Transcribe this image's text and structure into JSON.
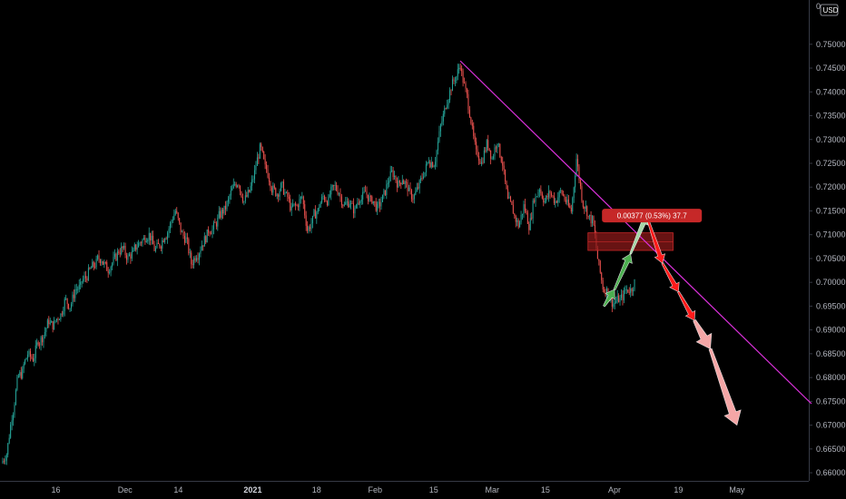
{
  "axis": {
    "currency": "USD",
    "top_label": "0"
  },
  "measure": {
    "label": "0.00377 (0.53%) 37.7"
  },
  "colors": {
    "up": "#26a69a",
    "down": "#ef5350",
    "trendline": "#d930d9",
    "zone": "#8b1a1a",
    "arrow_green": "#4caf50",
    "arrow_light_green": "#a5d6a7",
    "arrow_red": "#ff1a1a",
    "arrow_pink": "#f4a6a6"
  },
  "chart_data": {
    "type": "candlestick",
    "currency": "USD",
    "y_ticks": [
      0.66,
      0.665,
      0.67,
      0.675,
      0.68,
      0.685,
      0.69,
      0.695,
      0.7,
      0.705,
      0.71,
      0.715,
      0.72,
      0.725,
      0.73,
      0.735,
      0.74,
      0.745,
      0.75
    ],
    "y_tick_labels": [
      "0.66000",
      "0.66500",
      "0.67000",
      "0.67500",
      "0.68000",
      "0.68500",
      "0.69000",
      "0.69500",
      "0.70000",
      "0.70500",
      "0.71000",
      "0.71500",
      "0.72000",
      "0.72500",
      "0.73000",
      "0.73500",
      "0.74000",
      "0.74500",
      "0.75000"
    ],
    "ylim": [
      0.6583,
      0.7593
    ],
    "x_ticks": [
      {
        "label": "16",
        "bold": false,
        "index": 10
      },
      {
        "label": "Dec",
        "bold": false,
        "index": 23
      },
      {
        "label": "14",
        "bold": false,
        "index": 33
      },
      {
        "label": "2021",
        "bold": true,
        "index": 47
      },
      {
        "label": "18",
        "bold": false,
        "index": 59
      },
      {
        "label": "Feb",
        "bold": false,
        "index": 70
      },
      {
        "label": "15",
        "bold": false,
        "index": 81
      },
      {
        "label": "Mar",
        "bold": false,
        "index": 92
      },
      {
        "label": "15",
        "bold": false,
        "index": 102
      },
      {
        "label": "Apr",
        "bold": false,
        "index": 115
      },
      {
        "label": "19",
        "bold": false,
        "index": 127
      },
      {
        "label": "May",
        "bold": false,
        "index": 138
      }
    ],
    "x_count": 152,
    "close": [
      0.664,
      0.672,
      0.679,
      0.681,
      0.685,
      0.684,
      0.688,
      0.689,
      0.692,
      0.691,
      0.693,
      0.696,
      0.695,
      0.6985,
      0.699,
      0.701,
      0.703,
      0.704,
      0.705,
      0.703,
      0.704,
      0.706,
      0.707,
      0.705,
      0.706,
      0.708,
      0.709,
      0.71,
      0.707,
      0.708,
      0.71,
      0.712,
      0.715,
      0.711,
      0.709,
      0.704,
      0.706,
      0.708,
      0.71,
      0.711,
      0.713,
      0.715,
      0.717,
      0.72,
      0.721,
      0.717,
      0.719,
      0.723,
      0.728,
      0.724,
      0.721,
      0.719,
      0.72,
      0.718,
      0.715,
      0.716,
      0.718,
      0.711,
      0.713,
      0.715,
      0.718,
      0.717,
      0.72,
      0.719,
      0.716,
      0.717,
      0.715,
      0.718,
      0.719,
      0.717,
      0.716,
      0.717,
      0.72,
      0.723,
      0.721,
      0.722,
      0.72,
      0.718,
      0.72,
      0.723,
      0.726,
      0.725,
      0.731,
      0.736,
      0.74,
      0.743,
      0.746,
      0.74,
      0.734,
      0.727,
      0.725,
      0.729,
      0.726,
      0.73,
      0.725,
      0.717,
      0.715,
      0.712,
      0.716,
      0.712,
      0.718,
      0.72,
      0.717,
      0.719,
      0.717,
      0.719,
      0.717,
      0.715,
      0.726,
      0.718,
      0.715,
      0.713,
      0.705,
      0.699,
      0.698,
      0.6955,
      0.6965,
      0.6975,
      0.6985,
      0.7
    ],
    "projection_path": [
      {
        "x": 115,
        "y": 0.6985,
        "kind": "up"
      },
      {
        "x": 118,
        "y": 0.706,
        "kind": "up"
      },
      {
        "x": 121,
        "y": 0.714,
        "kind": "up_light"
      },
      {
        "x": 124,
        "y": 0.704,
        "kind": "down"
      },
      {
        "x": 127,
        "y": 0.698,
        "kind": "down"
      },
      {
        "x": 130,
        "y": 0.692,
        "kind": "down"
      },
      {
        "x": 133,
        "y": 0.686,
        "kind": "down_pink"
      },
      {
        "x": 138,
        "y": 0.67,
        "kind": "down_pink"
      }
    ],
    "trendline": {
      "from": {
        "x": 86,
        "y": 0.7465
      },
      "to": {
        "x": 152,
        "y": 0.6745
      }
    },
    "zone": {
      "x_start": 110,
      "x_end": 126,
      "y_low": 0.7067,
      "y_high": 0.7104
    },
    "measure_box": {
      "x": 114,
      "y": 0.7145
    }
  }
}
